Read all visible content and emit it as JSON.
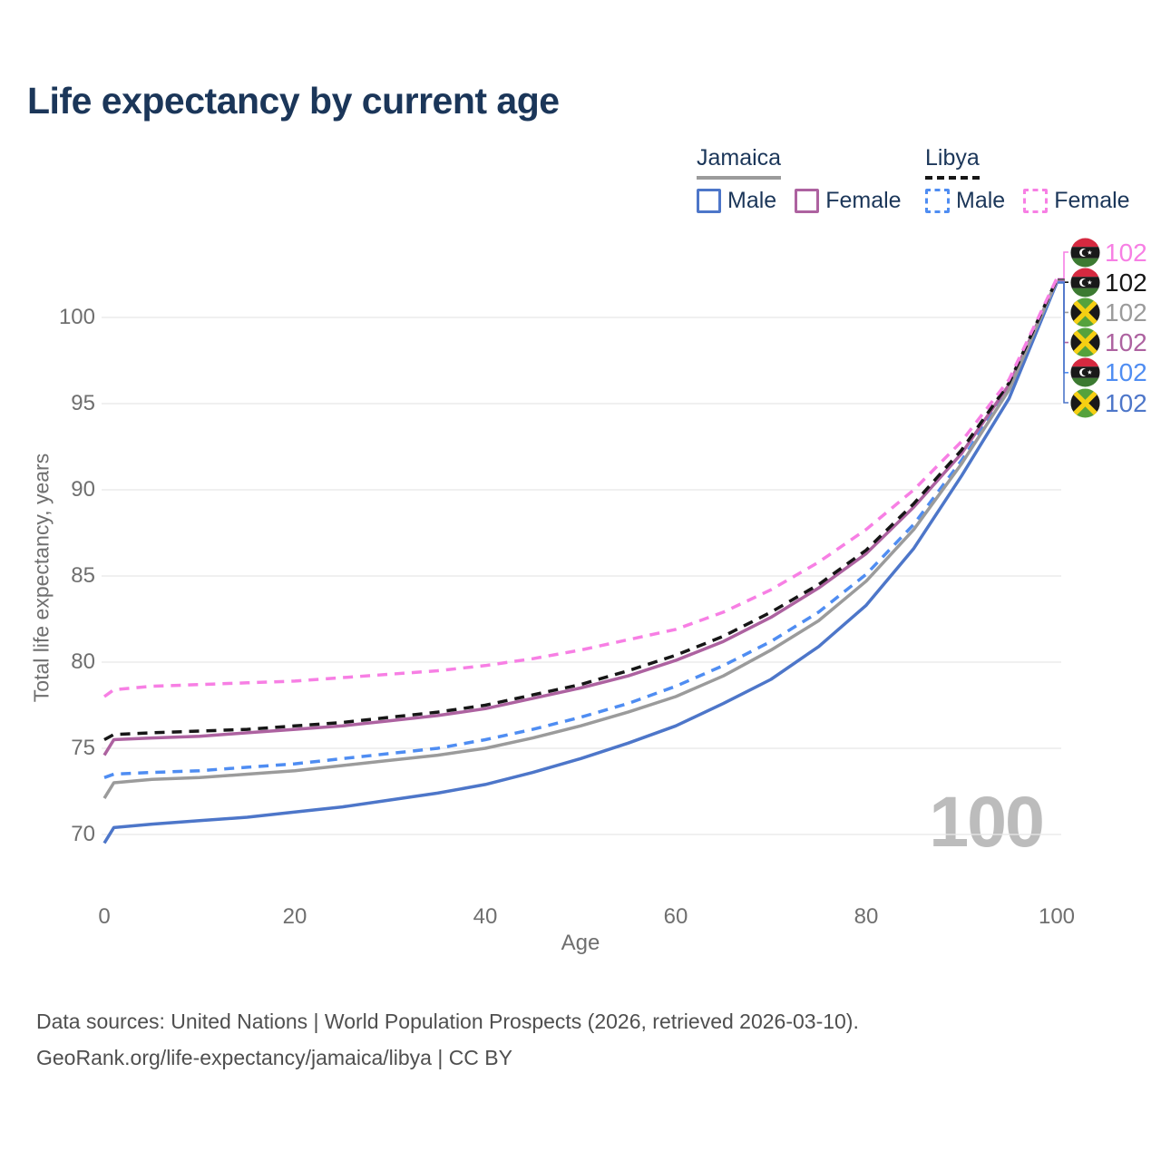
{
  "header": {
    "title": "Life expectancy by current age"
  },
  "legend": {
    "groups": [
      {
        "label": "Jamaica",
        "underline_style": "solid",
        "items": [
          {
            "label": "Male",
            "swatch_color": "#4d76c9",
            "swatch_style": "solid"
          },
          {
            "label": "Female",
            "swatch_color": "#ad62a0",
            "swatch_style": "solid"
          }
        ]
      },
      {
        "label": "Libya",
        "underline_style": "dashed",
        "items": [
          {
            "label": "Male",
            "swatch_color": "#4f8df2",
            "swatch_style": "dashed"
          },
          {
            "label": "Female",
            "swatch_color": "#f77fe4",
            "swatch_style": "dashed"
          }
        ]
      }
    ]
  },
  "chart_data": {
    "type": "line",
    "title": "Life expectancy by current age",
    "xlabel": "Age",
    "ylabel": "Total life expectancy, years",
    "x_ticks": [
      0,
      20,
      40,
      60,
      80,
      100
    ],
    "y_ticks": [
      70,
      75,
      80,
      85,
      90,
      95,
      100
    ],
    "xlim": [
      0,
      100
    ],
    "ylim": [
      69,
      103.5
    ],
    "grid": "horizontal",
    "legend_position": "top-right",
    "x": [
      0,
      1,
      5,
      10,
      15,
      20,
      25,
      30,
      35,
      40,
      45,
      50,
      55,
      60,
      65,
      70,
      75,
      80,
      85,
      90,
      95,
      100
    ],
    "series": [
      {
        "name": "Libya Female",
        "country": "Libya",
        "flag": "libya-flag",
        "style": "dashed",
        "color": "#f77fe4",
        "end_label": "102",
        "values": [
          78.0,
          78.4,
          78.6,
          78.7,
          78.8,
          78.9,
          79.1,
          79.3,
          79.5,
          79.8,
          80.2,
          80.7,
          81.3,
          81.9,
          82.9,
          84.2,
          85.8,
          87.7,
          90.0,
          92.8,
          96.4,
          102.25
        ]
      },
      {
        "name": "Libya",
        "country": "Libya",
        "flag": "libya-flag",
        "style": "dashed",
        "color": "#161616",
        "end_label": "102",
        "values": [
          75.5,
          75.8,
          75.9,
          76.0,
          76.1,
          76.3,
          76.5,
          76.8,
          77.1,
          77.5,
          78.1,
          78.7,
          79.5,
          80.4,
          81.5,
          82.9,
          84.5,
          86.5,
          89.2,
          92.3,
          96.2,
          102.2
        ]
      },
      {
        "name": "Jamaica",
        "country": "Jamaica",
        "flag": "jamaica-flag",
        "style": "solid",
        "color": "#9b9b9b",
        "end_label": "102",
        "values": [
          72.1,
          73.0,
          73.2,
          73.3,
          73.5,
          73.7,
          74.0,
          74.3,
          74.6,
          75.0,
          75.6,
          76.3,
          77.1,
          78.0,
          79.2,
          80.7,
          82.4,
          84.7,
          87.7,
          91.5,
          95.8,
          102.15
        ]
      },
      {
        "name": "Jamaica Female",
        "country": "Jamaica",
        "flag": "jamaica-flag",
        "style": "solid",
        "color": "#ad62a0",
        "end_label": "102",
        "values": [
          74.6,
          75.5,
          75.6,
          75.7,
          75.9,
          76.1,
          76.3,
          76.6,
          76.9,
          77.3,
          77.9,
          78.5,
          79.2,
          80.1,
          81.2,
          82.6,
          84.3,
          86.3,
          89.0,
          92.1,
          96.1,
          102.1
        ]
      },
      {
        "name": "Libya Male",
        "country": "Libya",
        "flag": "libya-flag",
        "style": "dashed",
        "color": "#4f8df2",
        "end_label": "102",
        "values": [
          73.3,
          73.5,
          73.6,
          73.7,
          73.9,
          74.1,
          74.4,
          74.7,
          75.0,
          75.5,
          76.1,
          76.8,
          77.6,
          78.6,
          79.8,
          81.2,
          82.9,
          85.1,
          88.0,
          91.7,
          95.9,
          102.05
        ]
      },
      {
        "name": "Jamaica Male",
        "country": "Jamaica",
        "flag": "jamaica-flag",
        "style": "solid",
        "color": "#4d76c9",
        "end_label": "102",
        "values": [
          69.5,
          70.4,
          70.6,
          70.8,
          71.0,
          71.3,
          71.6,
          72.0,
          72.4,
          72.9,
          73.6,
          74.4,
          75.3,
          76.3,
          77.6,
          79.0,
          80.9,
          83.3,
          86.6,
          90.8,
          95.3,
          102.0
        ]
      }
    ]
  },
  "watermark": {
    "text": "100"
  },
  "footer": {
    "line1": "Data sources: United Nations | World Population Prospects (2026, retrieved 2026-03-10).",
    "line2": "GeoRank.org/life-expectancy/jamaica/libya | CC BY"
  },
  "colors": {
    "title_navy": "#1b3659",
    "axis_text": "#6f6f6f",
    "grid": "#e8e8e8",
    "watermark_gray": "#bcbcbc",
    "footer_text": "#4f4f4f",
    "jamaica_male_blue": "#4d76c9",
    "jamaica_female_purple": "#ad62a0",
    "jamaica_gray": "#9b9b9b",
    "libya_male_blue": "#4f8df2",
    "libya_female_pink": "#f77fe4",
    "libya_black": "#161616"
  }
}
